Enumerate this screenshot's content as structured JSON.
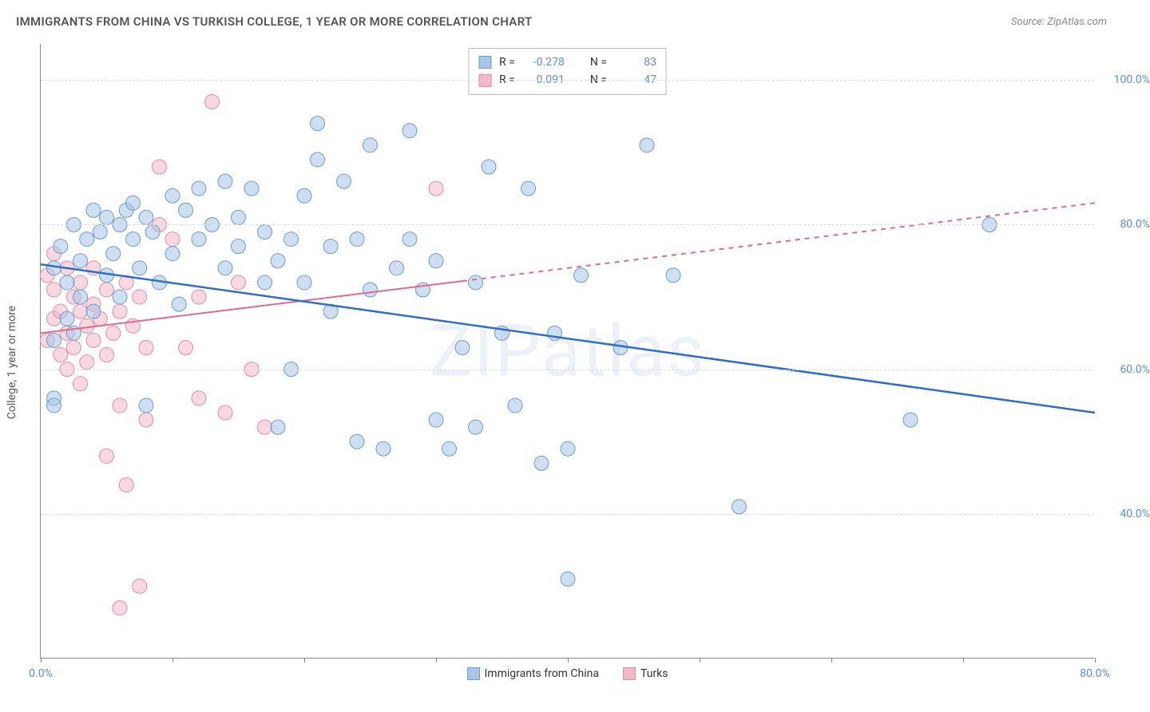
{
  "title": "IMMIGRANTS FROM CHINA VS TURKISH COLLEGE, 1 YEAR OR MORE CORRELATION CHART",
  "source_label": "Source: ZipAtlas.com",
  "y_axis_label": "College, 1 year or more",
  "watermark": "ZIPatlas",
  "chart": {
    "type": "scatter",
    "xlim": [
      0,
      80
    ],
    "ylim": [
      20,
      105
    ],
    "x_ticks": [
      0,
      10,
      20,
      30,
      40,
      50,
      60,
      70,
      80
    ],
    "x_tick_labels": {
      "0": "0.0%",
      "80": "80.0%"
    },
    "y_ticks": [
      40,
      60,
      80,
      100
    ],
    "y_tick_labels": {
      "40": "40.0%",
      "60": "60.0%",
      "80": "80.0%",
      "100": "100.0%"
    },
    "grid_color": "#dddddd",
    "axis_color": "#888888",
    "background_color": "#ffffff",
    "tick_label_color": "#5b8dd6",
    "title_color": "#555555",
    "title_fontsize": 15,
    "label_fontsize": 14
  },
  "series": {
    "china": {
      "label": "Immigrants from China",
      "color_fill": "#a8c5e8",
      "color_stroke": "#6b9bd2",
      "fill_opacity": 0.55,
      "marker_radius": 9,
      "R": "-0.278",
      "N": "83",
      "trend": {
        "x1": 0,
        "y1": 74.5,
        "x2": 80,
        "y2": 54,
        "color": "#2f6fc5",
        "width": 2.5,
        "dash": "none"
      },
      "points": [
        [
          1,
          74
        ],
        [
          1,
          64
        ],
        [
          1.5,
          77
        ],
        [
          2,
          67
        ],
        [
          2,
          72
        ],
        [
          2.5,
          80
        ],
        [
          2.5,
          65
        ],
        [
          3,
          75
        ],
        [
          3,
          70
        ],
        [
          1,
          56
        ],
        [
          3.5,
          78
        ],
        [
          4,
          82
        ],
        [
          4,
          68
        ],
        [
          4.5,
          79
        ],
        [
          5,
          81
        ],
        [
          5,
          73
        ],
        [
          5.5,
          76
        ],
        [
          6,
          80
        ],
        [
          6,
          70
        ],
        [
          6.5,
          82
        ],
        [
          7,
          78
        ],
        [
          7,
          83
        ],
        [
          7.5,
          74
        ],
        [
          8,
          81
        ],
        [
          8,
          55
        ],
        [
          8.5,
          79
        ],
        [
          9,
          72
        ],
        [
          10,
          84
        ],
        [
          10,
          76
        ],
        [
          10.5,
          69
        ],
        [
          11,
          82
        ],
        [
          12,
          78
        ],
        [
          12,
          85
        ],
        [
          13,
          80
        ],
        [
          14,
          74
        ],
        [
          14,
          86
        ],
        [
          15,
          77
        ],
        [
          15,
          81
        ],
        [
          16,
          85
        ],
        [
          17,
          79
        ],
        [
          17,
          72
        ],
        [
          18,
          75
        ],
        [
          18,
          52
        ],
        [
          19,
          78
        ],
        [
          19,
          60
        ],
        [
          20,
          84
        ],
        [
          20,
          72
        ],
        [
          21,
          89
        ],
        [
          21,
          94
        ],
        [
          22,
          77
        ],
        [
          22,
          68
        ],
        [
          23,
          86
        ],
        [
          24,
          50
        ],
        [
          24,
          78
        ],
        [
          25,
          71
        ],
        [
          25,
          91
        ],
        [
          26,
          49
        ],
        [
          27,
          74
        ],
        [
          28,
          78
        ],
        [
          28,
          93
        ],
        [
          29,
          71
        ],
        [
          30,
          53
        ],
        [
          30,
          75
        ],
        [
          31,
          49
        ],
        [
          32,
          63
        ],
        [
          33,
          52
        ],
        [
          33,
          72
        ],
        [
          34,
          88
        ],
        [
          35,
          65
        ],
        [
          36,
          55
        ],
        [
          37,
          85
        ],
        [
          38,
          47
        ],
        [
          39,
          65
        ],
        [
          40,
          31
        ],
        [
          40,
          49
        ],
        [
          41,
          73
        ],
        [
          44,
          63
        ],
        [
          46,
          91
        ],
        [
          48,
          73
        ],
        [
          53,
          41
        ],
        [
          66,
          53
        ],
        [
          72,
          80
        ],
        [
          1,
          55
        ]
      ]
    },
    "turks": {
      "label": "Turks",
      "color_fill": "#f3b8c8",
      "color_stroke": "#e68aa5",
      "fill_opacity": 0.55,
      "marker_radius": 9,
      "R": "0.091",
      "N": "47",
      "trend": {
        "x1": 0,
        "y1": 65,
        "x2": 80,
        "y2": 83,
        "color": "#e06b8e",
        "width": 2,
        "solid_until_x": 32,
        "dash": "6,6"
      },
      "points": [
        [
          0.5,
          73
        ],
        [
          0.5,
          64
        ],
        [
          1,
          67
        ],
        [
          1,
          71
        ],
        [
          1,
          76
        ],
        [
          1.5,
          62
        ],
        [
          1.5,
          68
        ],
        [
          2,
          74
        ],
        [
          2,
          65
        ],
        [
          2,
          60
        ],
        [
          2.5,
          70
        ],
        [
          2.5,
          63
        ],
        [
          3,
          68
        ],
        [
          3,
          58
        ],
        [
          3,
          72
        ],
        [
          3.5,
          66
        ],
        [
          3.5,
          61
        ],
        [
          4,
          69
        ],
        [
          4,
          64
        ],
        [
          4,
          74
        ],
        [
          4.5,
          67
        ],
        [
          5,
          62
        ],
        [
          5,
          71
        ],
        [
          5,
          48
        ],
        [
          5.5,
          65
        ],
        [
          6,
          68
        ],
        [
          6,
          55
        ],
        [
          6.5,
          72
        ],
        [
          6.5,
          44
        ],
        [
          7,
          66
        ],
        [
          7.5,
          70
        ],
        [
          7.5,
          30
        ],
        [
          8,
          63
        ],
        [
          8,
          53
        ],
        [
          6,
          27
        ],
        [
          9,
          80
        ],
        [
          9,
          88
        ],
        [
          10,
          78
        ],
        [
          11,
          63
        ],
        [
          12,
          56
        ],
        [
          12,
          70
        ],
        [
          13,
          97
        ],
        [
          14,
          54
        ],
        [
          15,
          72
        ],
        [
          16,
          60
        ],
        [
          17,
          52
        ],
        [
          30,
          85
        ]
      ]
    }
  },
  "stats_box": {
    "R_label": "R =",
    "N_label": "N ="
  }
}
